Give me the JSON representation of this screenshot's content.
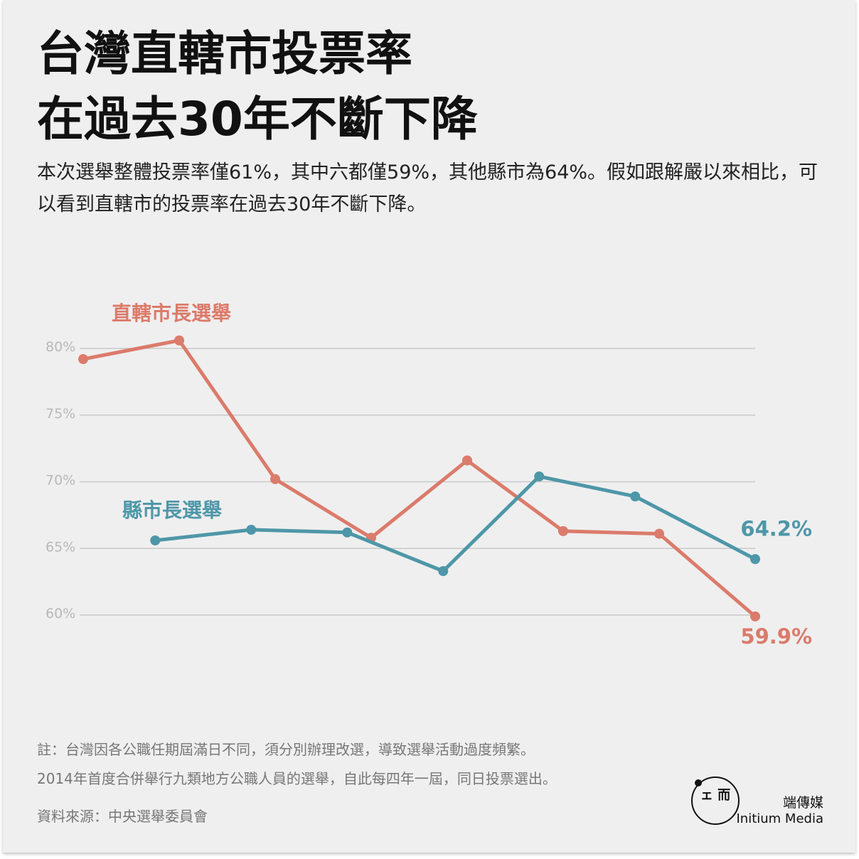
{
  "headline": {
    "line1": "台灣直轄市投票率",
    "line2": "在過去30年不斷下降"
  },
  "subtitle": "本次選舉整體投票率僅61%，其中六都僅59%，其他縣市為64%。假如跟解嚴以來相比，可以看到直轄市的投票率在過去30年不斷下降。",
  "notes": [
    "註：台灣因各公職任期屆滿日不同，須分別辦理改選，導致選舉活動過度頻繁。",
    "2014年首度合併舉行九類地方公職人員的選舉，自此每四年一屆，同日投票選出。"
  ],
  "source": "資料來源：中央選舉委員會",
  "brand": {
    "name_zh": "端傳媒",
    "name_en": "Initium Media",
    "mark_text": "ェ 而"
  },
  "chart_data": {
    "type": "line",
    "yticks": [
      60,
      65,
      70,
      75,
      80
    ],
    "ytick_labels": [
      "60%",
      "65%",
      "70%",
      "75%",
      "80%"
    ],
    "ylim": [
      58,
      83
    ],
    "grid": true,
    "x": [
      0,
      1,
      2,
      3,
      4,
      5,
      6,
      7
    ],
    "series": [
      {
        "name": "直轄市長選舉",
        "color": "#db7b6b",
        "x": [
          0,
          1,
          2,
          3,
          4,
          5,
          6,
          7
        ],
        "values": [
          79.2,
          80.6,
          70.2,
          65.8,
          71.6,
          66.3,
          66.1,
          59.9
        ],
        "end_label": "59.9%"
      },
      {
        "name": "縣市長選舉",
        "color": "#4e97a8",
        "x": [
          0.75,
          1.75,
          2.75,
          3.75,
          4.75,
          5.75,
          7
        ],
        "values": [
          65.6,
          66.4,
          66.2,
          63.3,
          70.4,
          68.9,
          64.2
        ],
        "end_label": "64.2%"
      }
    ]
  }
}
